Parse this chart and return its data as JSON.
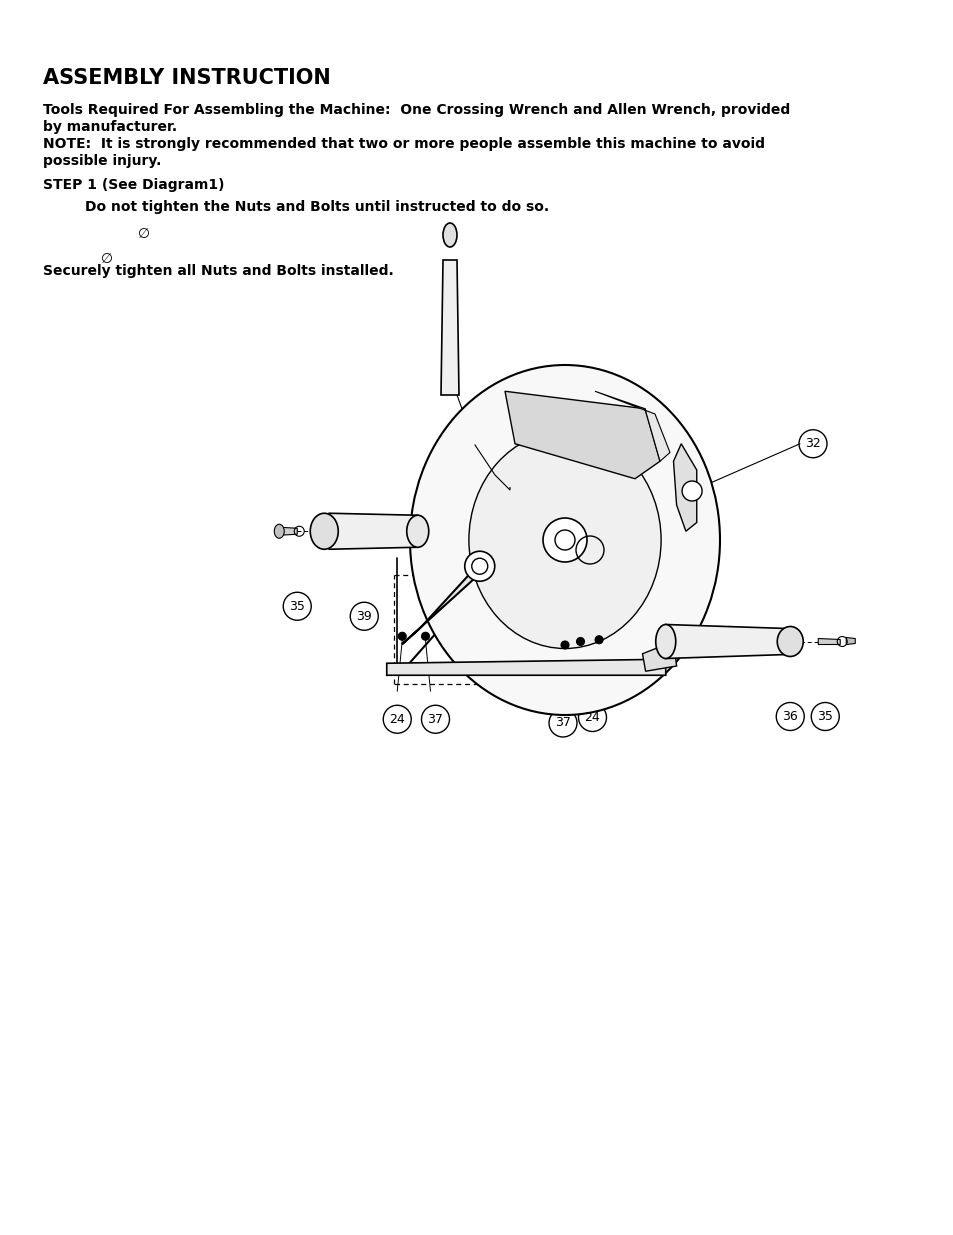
{
  "title": "ASSEMBLY INSTRUCTION",
  "line1": "Tools Required For Assembling the Machine:  One Crossing Wrench and Allen Wrench, provided",
  "line2": "by manufacturer.",
  "line3": "NOTE:  It is strongly recommended that two or more people assemble this machine to avoid",
  "line4": "possible injury.",
  "step1": "STEP 1 (See Diagram1)",
  "sub1": "Do not tighten the Nuts and Bolts until instructed to do so.",
  "bullet1": "∅",
  "bullet2": "∅",
  "sub2": "Securely tighten all Nuts and Bolts installed.",
  "bg_color": "#ffffff",
  "text_color": "#000000",
  "fig_width": 9.54,
  "fig_height": 12.35,
  "dpi": 100
}
